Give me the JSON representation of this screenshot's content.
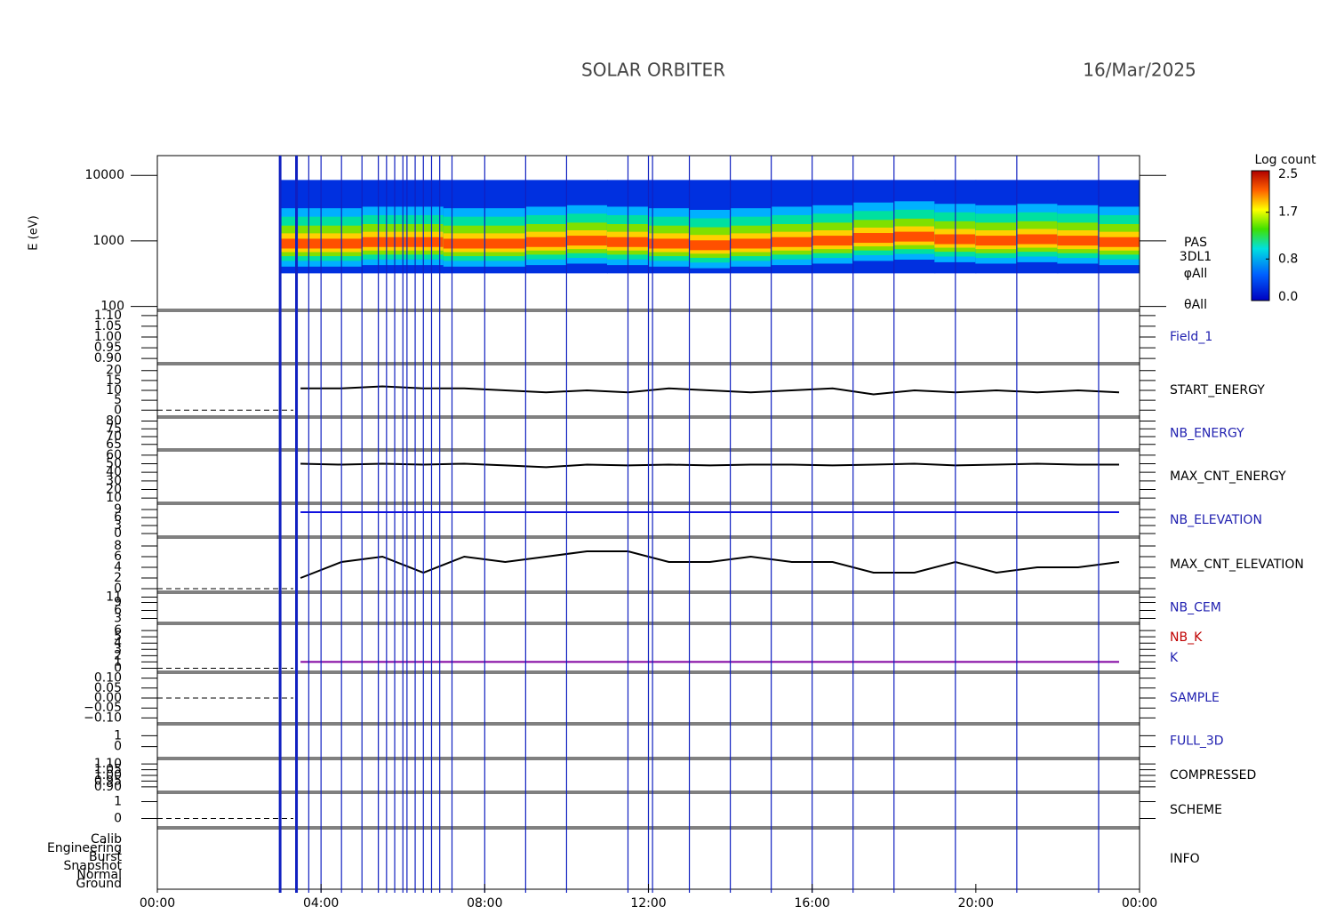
{
  "title": "SOLAR ORBITER",
  "date": "16/Mar/2025",
  "xlim": [
    0,
    24
  ],
  "xticks": [
    {
      "value": 0,
      "label": "00:00"
    },
    {
      "value": 4,
      "label": "04:00"
    },
    {
      "value": 8,
      "label": "08:00"
    },
    {
      "value": 12,
      "label": "12:00"
    },
    {
      "value": 16,
      "label": "16:00"
    },
    {
      "value": 20,
      "label": "20:00"
    },
    {
      "value": 24,
      "label": "00:00"
    }
  ],
  "x": [
    3.5,
    4.5,
    5.5,
    6.5,
    7.5,
    8.5,
    9.5,
    10.5,
    11.5,
    12.5,
    13.5,
    14.5,
    15.5,
    16.5,
    17.5,
    18.5,
    19.5,
    20.5,
    21.5,
    22.5,
    23.5
  ],
  "markers": [
    3.0,
    3.4,
    3.7,
    4.0,
    4.5,
    5.0,
    5.4,
    5.6,
    5.8,
    6.0,
    6.1,
    6.3,
    6.5,
    6.7,
    6.9,
    7.2,
    8.0,
    9.0,
    10.0,
    11.5,
    12.0,
    12.1,
    13.0,
    14.0,
    15.0,
    16.0,
    17.0,
    18.0,
    19.5,
    21.0,
    23.0
  ],
  "spectrogram": {
    "ylabel": "E (eV)",
    "log": true,
    "ylim": [
      90,
      20000
    ],
    "yticks": [
      100,
      1000,
      10000
    ],
    "labels": [
      {
        "name": "PAS"
      },
      {
        "name": "3DL1"
      },
      {
        "name": "φAll"
      },
      {
        "name": "θAll"
      }
    ],
    "range": [
      320,
      8500
    ],
    "peak": [
      900,
      900,
      950,
      950,
      900,
      900,
      950,
      1000,
      950,
      900,
      850,
      900,
      950,
      1000,
      1100,
      1150,
      1050,
      1000,
      1050,
      1000,
      950
    ],
    "colorbar": {
      "title": "Log count",
      "ticks": [
        {
          "value": 0,
          "label": "0.0"
        },
        0.8,
        1.7,
        2.5
      ],
      "lim": [
        0,
        2.5
      ]
    }
  },
  "panels": [
    {
      "labels": [
        {
          "name": "Field_1",
          "color": "#2020b0"
        }
      ],
      "ylim": [
        0.88,
        1.12
      ],
      "yticks": [
        {
          "value": 0.9,
          "label": "0.90"
        },
        {
          "value": 0.95,
          "label": "0.95"
        },
        {
          "value": 1.0,
          "label": "1.00"
        },
        {
          "value": 1.05,
          "label": "1.05"
        },
        {
          "value": 1.1,
          "label": "1.10"
        }
      ]
    },
    {
      "labels": [
        {
          "name": "START_ENERGY",
          "color": "#000000"
        }
      ],
      "ylim": [
        -3,
        23
      ],
      "yticks": [
        0,
        5,
        10,
        15,
        20
      ],
      "dashed_zero": true,
      "line_color": "#000000",
      "values": [
        11,
        11,
        12,
        11,
        11,
        10,
        9,
        10,
        9,
        11,
        10,
        9,
        10,
        11,
        8,
        10,
        9,
        10,
        9,
        10,
        9
      ]
    },
    {
      "labels": [
        {
          "name": "NB_ENERGY",
          "color": "#2020b0"
        }
      ],
      "ylim": [
        62,
        82
      ],
      "yticks": [
        65,
        70,
        75,
        80
      ]
    },
    {
      "labels": [
        {
          "name": "MAX_CNT_ENERGY",
          "color": "#000000"
        }
      ],
      "ylim": [
        5,
        65
      ],
      "yticks": [
        10,
        20,
        30,
        40,
        50,
        60
      ],
      "line_color": "#000000",
      "values": [
        50,
        49,
        50,
        49,
        50,
        48,
        46,
        49,
        48,
        49,
        48,
        49,
        49,
        48,
        49,
        50,
        48,
        49,
        50,
        49,
        49
      ]
    },
    {
      "labels": [
        {
          "name": "NB_ELEVATION",
          "color": "#2020b0"
        }
      ],
      "ylim": [
        -1,
        11
      ],
      "yticks": [
        0,
        3,
        6,
        9
      ],
      "line_color": "#1010e0",
      "values": [
        8,
        8,
        8,
        8,
        8,
        8,
        8,
        8,
        8,
        8,
        8,
        8,
        8,
        8,
        8,
        8,
        8,
        8,
        8,
        8,
        8
      ]
    },
    {
      "labels": [
        {
          "name": "MAX_CNT_ELEVATION",
          "color": "#000000"
        }
      ],
      "ylim": [
        -0.5,
        9.5
      ],
      "yticks": [
        0,
        2,
        4,
        6,
        8
      ],
      "dashed_zero": true,
      "line_color": "#000000",
      "values": [
        2,
        5,
        6,
        3,
        6,
        5,
        6,
        7,
        7,
        5,
        5,
        6,
        5,
        5,
        3,
        3,
        5,
        3,
        4,
        4,
        5
      ]
    },
    {
      "labels": [
        {
          "name": "NB_CEM",
          "color": "#2020b0"
        }
      ],
      "ylim": [
        1.5,
        12.5
      ],
      "yticks": [
        3,
        6,
        9,
        11
      ]
    },
    {
      "labels": [
        {
          "name": "NB_K",
          "color": "#c00000"
        },
        {
          "name": "K",
          "color": "#2020b0"
        }
      ],
      "ylim": [
        -0.5,
        7
      ],
      "yticks": [
        0,
        1,
        2,
        3,
        4,
        5,
        6
      ],
      "dashed_zero": true,
      "line_color": "#8000a0",
      "values": [
        1,
        1,
        1,
        1,
        1,
        1,
        1,
        1,
        1,
        1,
        1,
        1,
        1,
        1,
        1,
        1,
        1,
        1,
        1,
        1,
        1
      ]
    },
    {
      "labels": [
        {
          "name": "SAMPLE",
          "color": "#2020b0"
        }
      ],
      "ylim": [
        -0.125,
        0.125
      ],
      "yticks": [
        {
          "value": -0.1,
          "label": "−0.10"
        },
        {
          "value": -0.05,
          "label": "−0.05"
        },
        {
          "value": 0,
          "label": "0.00"
        },
        {
          "value": 0.05,
          "label": "0.05"
        },
        {
          "value": 0.1,
          "label": "0.10"
        }
      ],
      "dashed_zero": true
    },
    {
      "labels": [
        {
          "name": "FULL_3D",
          "color": "#2020b0"
        }
      ],
      "ylim": [
        -1,
        2
      ],
      "yticks": [
        0,
        1
      ]
    },
    {
      "labels": [
        {
          "name": "COMPRESSED",
          "color": "#000000"
        }
      ],
      "ylim": [
        0.86,
        1.14
      ],
      "yticks": [
        {
          "value": 0.9,
          "label": "0.90"
        },
        {
          "value": 0.95,
          "label": "0.95"
        },
        {
          "value": 1.0,
          "label": "1.00"
        },
        {
          "value": 1.05,
          "label": "1.05"
        },
        {
          "value": 1.1,
          "label": "1.10"
        }
      ]
    },
    {
      "labels": [
        {
          "name": "SCHEME",
          "color": "#000000"
        }
      ],
      "ylim": [
        -0.5,
        1.5
      ],
      "yticks": [
        0,
        1
      ],
      "dashed_zero": true
    },
    {
      "labels": [
        {
          "name": "INFO",
          "color": "#000000"
        }
      ],
      "categories": [
        "Calib",
        "Engineering",
        "Burst",
        "Snapshot",
        "Normal",
        "Ground"
      ]
    }
  ]
}
